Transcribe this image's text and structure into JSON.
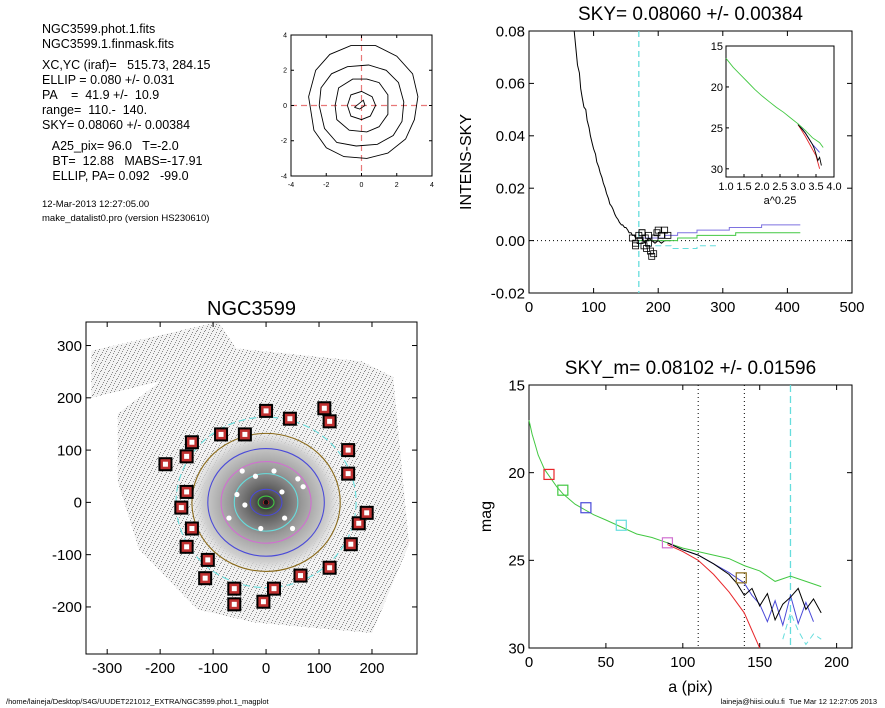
{
  "info": {
    "lines": [
      "NGC3599.phot.1.fits",
      "NGC3599.1.finmask.fits",
      "",
      "XC,YC (iraf)=   515.73, 284.15",
      "ELLIP = 0.080 +/- 0.031",
      "PA    =  41.9 +/-  10.9",
      "range=  110.-  140.",
      "SKY= 0.08060 +/- 0.00384",
      "",
      "   A25_pix= 96.0   T=-2.0",
      "   BT=  12.88   MABS=-17.91",
      "   ELLIP, PA= 0.092   -99.0"
    ],
    "timestamp": "12-Mar-2013 12:27:05.00",
    "program": "make_datalist0.pro (version HS230610)"
  },
  "footer": {
    "path": "/home/laineja/Desktop/S4G/UUDET221012_EXTRA/NGC3599.phot.1_magplot",
    "user_date": "laineja@hiisi.oulu.fi  Tue Mar 12 12:27:05 2013"
  },
  "colors": {
    "black": "#000000",
    "red": "#e8262a",
    "green": "#42c842",
    "blue": "#4a4ad8",
    "cyan": "#66dddd",
    "purple": "#7e72e0",
    "magenta": "#d070d0",
    "brown": "#8a6a1a",
    "pink_dash": "#e87878",
    "mask_fill": "#c03030"
  },
  "chart_data": [
    {
      "id": "center-contours",
      "type": "contour",
      "title": "",
      "xlim": [
        -4,
        4
      ],
      "ylim": [
        -4,
        4
      ],
      "xticks": [
        -4,
        -2,
        0,
        2,
        4
      ],
      "yticks": [
        -4,
        -2,
        0,
        2,
        4
      ],
      "contours": [
        [
          [
            -0.4,
            -0.1
          ],
          [
            0.1,
            0.3
          ],
          [
            0.2,
            0.0
          ],
          [
            -0.1,
            -0.2
          ],
          [
            -0.4,
            -0.1
          ]
        ],
        [
          [
            -0.8,
            0.0
          ],
          [
            -0.6,
            0.6
          ],
          [
            0.0,
            0.8
          ],
          [
            0.6,
            0.5
          ],
          [
            0.8,
            0.0
          ],
          [
            0.5,
            -0.6
          ],
          [
            0.0,
            -0.8
          ],
          [
            -0.6,
            -0.6
          ],
          [
            -0.8,
            0.0
          ]
        ],
        [
          [
            -1.5,
            0.0
          ],
          [
            -1.3,
            1.0
          ],
          [
            -0.5,
            1.5
          ],
          [
            0.3,
            1.5
          ],
          [
            1.0,
            1.3
          ],
          [
            1.5,
            0.6
          ],
          [
            1.5,
            -0.5
          ],
          [
            1.0,
            -1.2
          ],
          [
            0.3,
            -1.5
          ],
          [
            -0.7,
            -1.4
          ],
          [
            -1.4,
            -0.8
          ],
          [
            -1.5,
            0.0
          ]
        ],
        [
          [
            -2.4,
            0.0
          ],
          [
            -2.3,
            1.0
          ],
          [
            -1.7,
            1.8
          ],
          [
            -0.8,
            2.2
          ],
          [
            0.4,
            2.3
          ],
          [
            1.4,
            2.0
          ],
          [
            2.1,
            1.3
          ],
          [
            2.4,
            0.2
          ],
          [
            2.3,
            -0.9
          ],
          [
            1.8,
            -1.7
          ],
          [
            0.9,
            -2.2
          ],
          [
            -0.3,
            -2.3
          ],
          [
            -1.4,
            -2.1
          ],
          [
            -2.1,
            -1.3
          ],
          [
            -2.4,
            0.0
          ]
        ],
        [
          [
            -3.0,
            0.5
          ],
          [
            -2.6,
            2.0
          ],
          [
            -1.8,
            2.9
          ],
          [
            -0.6,
            3.4
          ],
          [
            0.8,
            3.4
          ],
          [
            2.0,
            2.8
          ],
          [
            2.9,
            1.8
          ],
          [
            3.2,
            0.5
          ],
          [
            3.0,
            -0.8
          ],
          [
            2.5,
            -1.9
          ],
          [
            1.5,
            -2.7
          ],
          [
            0.3,
            -3.0
          ],
          [
            -1.0,
            -2.9
          ],
          [
            -2.0,
            -2.4
          ],
          [
            -2.7,
            -1.4
          ],
          [
            -3.0,
            0.5
          ]
        ]
      ]
    },
    {
      "id": "sky-profile",
      "type": "line",
      "title": "SKY= 0.08060 +/- 0.00384",
      "ylabel": "INTENS-SKY",
      "xlabel": "",
      "xlim": [
        0,
        500
      ],
      "ylim": [
        -0.02,
        0.08
      ],
      "xticks": [
        0,
        100,
        200,
        300,
        400,
        500
      ],
      "yticks": [
        -0.02,
        0.0,
        0.02,
        0.04,
        0.06,
        0.08
      ],
      "ytick_labels": [
        "-0.02",
        "0.00",
        "0.02",
        "0.04",
        "0.06",
        "0.08"
      ],
      "vline": 170,
      "hline": 0,
      "series": [
        {
          "color": "black",
          "x": [
            70,
            75,
            78,
            80,
            82,
            85,
            88,
            90,
            93,
            95,
            98,
            100,
            103,
            105,
            108,
            110,
            113,
            115,
            118,
            120,
            123,
            125,
            128,
            130,
            133,
            135,
            138,
            140,
            143,
            145,
            148,
            150,
            153,
            155,
            158,
            160,
            163,
            165,
            168,
            170,
            175,
            180,
            185,
            190,
            195,
            200,
            205,
            210,
            215,
            220
          ],
          "y": [
            0.08,
            0.067,
            0.064,
            0.058,
            0.055,
            0.051,
            0.05,
            0.046,
            0.043,
            0.04,
            0.037,
            0.035,
            0.033,
            0.03,
            0.028,
            0.026,
            0.024,
            0.022,
            0.02,
            0.018,
            0.016,
            0.014,
            0.013,
            0.012,
            0.01,
            0.009,
            0.008,
            0.007,
            0.006,
            0.006,
            0.005,
            0.005,
            0.004,
            0.003,
            0.003,
            0.002,
            0.002,
            0.001,
            0.001,
            0.001,
            0.001,
            -0.001,
            0.001,
            0.0,
            -0.001,
            0.0,
            -0.001,
            0.0,
            0.0,
            0.0
          ]
        },
        {
          "color": "purple",
          "x": [
            170,
            190,
            210,
            230,
            260,
            290,
            310,
            340,
            360,
            380,
            400,
            420
          ],
          "y": [
            0.001,
            0.001,
            0.002,
            0.003,
            0.004,
            0.004,
            0.005,
            0.005,
            0.006,
            0.006,
            0.006,
            0.006
          ]
        },
        {
          "color": "green",
          "x": [
            170,
            200,
            230,
            260,
            280,
            300,
            320,
            340,
            360,
            380,
            400,
            420
          ],
          "y": [
            0.0,
            0.0,
            0.001,
            0.002,
            0.002,
            0.002,
            0.003,
            0.003,
            0.003,
            0.003,
            0.003,
            0.003
          ]
        },
        {
          "color": "cyan",
          "dashed": true,
          "x": [
            180,
            200,
            220,
            240,
            260,
            290
          ],
          "y": [
            -0.002,
            -0.002,
            -0.003,
            -0.003,
            -0.002,
            -0.002
          ]
        }
      ],
      "points": {
        "x": [
          160,
          165,
          170,
          172,
          175,
          178,
          180,
          182,
          185,
          188,
          190,
          193,
          195,
          198,
          200,
          205,
          210,
          215,
          165,
          175,
          185
        ],
        "y": [
          0.001,
          -0.001,
          0.002,
          0.0,
          0.003,
          -0.002,
          0.001,
          -0.003,
          0.002,
          -0.004,
          -0.006,
          -0.005,
          0.001,
          0.003,
          0.004,
          0.002,
          0.004,
          0.002,
          -0.002,
          0.003,
          -0.001
        ]
      },
      "inset": {
        "xlabel": "a^0.25",
        "xlim": [
          1.0,
          4.0
        ],
        "ylim": [
          15,
          31
        ],
        "xticks": [
          1.0,
          1.5,
          2.0,
          2.5,
          3.0,
          3.5,
          4.0
        ],
        "xtick_labels": [
          "1.0",
          "1.5",
          "2.0",
          "2.5",
          "3.0",
          "3.5",
          "4.0"
        ],
        "yticks": [
          15,
          20,
          25,
          30
        ],
        "series": [
          {
            "color": "red",
            "x": [
              3.0,
              3.1,
              3.2,
              3.3,
              3.4,
              3.5,
              3.55,
              3.6
            ],
            "y": [
              24.6,
              25.3,
              26.0,
              26.8,
              27.6,
              28.4,
              29.2,
              30.0
            ]
          },
          {
            "color": "blue",
            "x": [
              3.0,
              3.1,
              3.2,
              3.3,
              3.4,
              3.5,
              3.6
            ],
            "y": [
              24.5,
              25.0,
              25.6,
              26.3,
              27.0,
              27.5,
              28.0
            ]
          },
          {
            "color": "black",
            "x": [
              3.0,
              3.2,
              3.3,
              3.4,
              3.45,
              3.5,
              3.55,
              3.6,
              3.65
            ],
            "y": [
              24.6,
              25.6,
              26.3,
              27.0,
              27.5,
              28.2,
              29.0,
              28.6,
              29.6
            ]
          },
          {
            "color": "green",
            "x": [
              1.0,
              1.2,
              1.4,
              1.6,
              1.8,
              2.0,
              2.2,
              2.4,
              2.6,
              2.8,
              3.0,
              3.2,
              3.4,
              3.6,
              3.7
            ],
            "y": [
              16.5,
              17.6,
              18.5,
              19.4,
              20.3,
              21.1,
              21.8,
              22.5,
              23.1,
              23.8,
              24.5,
              25.3,
              26.2,
              26.8,
              27.4
            ]
          }
        ]
      }
    },
    {
      "id": "galaxy-image",
      "type": "image",
      "title": "NGC3599",
      "xlim": [
        -340,
        285
      ],
      "ylim": [
        -290,
        345
      ],
      "xticks": [
        -300,
        -200,
        -100,
        0,
        100,
        200
      ],
      "yticks": [
        -200,
        -100,
        0,
        100,
        200,
        300
      ],
      "ellipses": [
        {
          "color": "cyan",
          "dashed": true,
          "a": 170,
          "b": 163
        },
        {
          "color": "brown",
          "a": 140,
          "b": 132
        },
        {
          "color": "blue",
          "a": 110,
          "b": 103
        },
        {
          "color": "magenta",
          "a": 85,
          "b": 78
        },
        {
          "color": "cyan",
          "a": 60,
          "b": 55
        },
        {
          "color": "blue",
          "a": 30,
          "b": 25
        },
        {
          "color": "green",
          "a": 15,
          "b": 12
        },
        {
          "color": "red",
          "a": 5,
          "b": 4
        }
      ],
      "mask_boxes": [
        [
          -190,
          73
        ],
        [
          -150,
          88
        ],
        [
          -140,
          115
        ],
        [
          -85,
          130
        ],
        [
          -40,
          130
        ],
        [
          0,
          175
        ],
        [
          45,
          160
        ],
        [
          110,
          180
        ],
        [
          120,
          155
        ],
        [
          155,
          100
        ],
        [
          155,
          55
        ],
        [
          -150,
          20
        ],
        [
          -160,
          -10
        ],
        [
          -140,
          -50
        ],
        [
          -150,
          -85
        ],
        [
          -110,
          -110
        ],
        [
          -115,
          -145
        ],
        [
          -60,
          -165
        ],
        [
          -60,
          -195
        ],
        [
          -5,
          -190
        ],
        [
          15,
          -165
        ],
        [
          65,
          -140
        ],
        [
          120,
          -125
        ],
        [
          160,
          -80
        ],
        [
          175,
          -40
        ],
        [
          190,
          -20
        ]
      ],
      "white_dots": [
        [
          -55,
          15
        ],
        [
          -40,
          -5
        ],
        [
          30,
          20
        ],
        [
          60,
          45
        ],
        [
          70,
          30
        ],
        [
          -45,
          60
        ],
        [
          -20,
          50
        ],
        [
          15,
          60
        ],
        [
          35,
          -30
        ],
        [
          -10,
          -50
        ],
        [
          50,
          -50
        ],
        [
          -70,
          -30
        ]
      ]
    },
    {
      "id": "mag-profile",
      "type": "line",
      "title": "SKY_m=  0.08102 +/- 0.01596",
      "ylabel": "mag",
      "xlabel": "a (pix)",
      "xlim": [
        0,
        210
      ],
      "ylim": [
        15,
        30
      ],
      "xticks": [
        0,
        50,
        100,
        150,
        200
      ],
      "yticks": [
        15,
        20,
        25,
        30
      ],
      "vlines_dotted": [
        110,
        140
      ],
      "vline_dashed": 170,
      "series": [
        {
          "color": "green",
          "x": [
            0,
            2,
            4,
            6,
            8,
            10,
            14,
            18,
            22,
            26,
            30,
            36,
            42,
            50,
            60,
            70,
            80,
            90,
            100,
            110,
            120,
            130,
            140,
            150,
            160,
            170,
            180,
            190
          ],
          "y": [
            17.0,
            17.8,
            18.4,
            19.0,
            19.4,
            19.8,
            20.3,
            20.8,
            21.2,
            21.5,
            21.8,
            22.1,
            22.4,
            22.7,
            23.1,
            23.5,
            23.7,
            24.0,
            24.3,
            24.5,
            24.7,
            24.9,
            25.3,
            25.6,
            26.2,
            25.9,
            26.2,
            26.5
          ]
        },
        {
          "color": "red",
          "x": [
            90,
            100,
            110,
            120,
            130,
            140,
            145,
            150
          ],
          "y": [
            24.1,
            24.5,
            25.0,
            25.8,
            26.8,
            28.0,
            29.0,
            30.0
          ]
        },
        {
          "color": "blue",
          "x": [
            90,
            100,
            110,
            120,
            130,
            140,
            145,
            150,
            155,
            160,
            165,
            170,
            175,
            180,
            185
          ],
          "y": [
            24.0,
            24.4,
            24.7,
            25.2,
            25.7,
            26.3,
            27.0,
            27.5,
            28.5,
            27.3,
            28.7,
            27.0,
            28.6,
            27.4,
            28.5
          ]
        },
        {
          "color": "black",
          "x": [
            90,
            100,
            110,
            120,
            125,
            130,
            135,
            140,
            145,
            150,
            155,
            160,
            165,
            170,
            175,
            180,
            185,
            190
          ],
          "y": [
            24.0,
            24.4,
            24.7,
            25.2,
            25.5,
            25.8,
            26.3,
            27.0,
            26.6,
            27.6,
            26.9,
            28.4,
            27.5,
            27.1,
            26.6,
            27.8,
            27.2,
            28.0
          ]
        },
        {
          "color": "cyan",
          "dashed": true,
          "x": [
            165,
            170,
            175,
            180,
            185,
            190
          ],
          "y": [
            29.5,
            28.0,
            29.0,
            29.8,
            29.2,
            29.5
          ]
        }
      ],
      "markers": [
        {
          "color": "red",
          "x": 13,
          "y": 20.1
        },
        {
          "color": "green",
          "x": 22,
          "y": 21.0
        },
        {
          "color": "blue",
          "x": 37,
          "y": 22.0
        },
        {
          "color": "cyan",
          "x": 60,
          "y": 23.0
        },
        {
          "color": "magenta",
          "x": 90,
          "y": 24.0
        },
        {
          "color": "brown",
          "x": 138,
          "y": 26.0
        }
      ]
    }
  ]
}
